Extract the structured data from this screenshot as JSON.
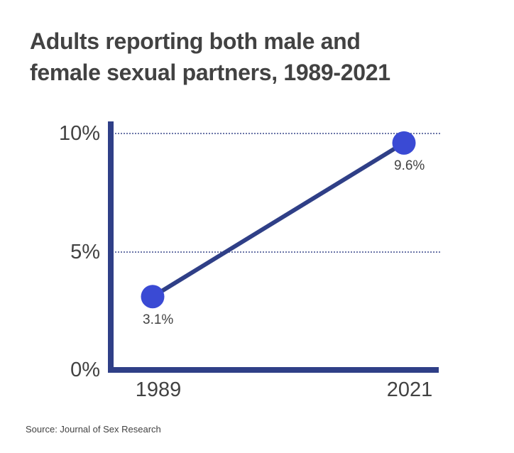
{
  "title": {
    "lines": [
      "Adults reporting both male and",
      "female sexual partners, 1989-2021"
    ]
  },
  "source": "Source: Journal of Sex Research",
  "chart_data": {
    "type": "line",
    "title": "Adults reporting both male and female sexual partners, 1989-2021",
    "categories": [
      "1989",
      "2021"
    ],
    "values": [
      3.1,
      9.6
    ],
    "point_labels": [
      "3.1%",
      "9.6%"
    ],
    "yticks": [
      {
        "value": 0,
        "label": "0%"
      },
      {
        "value": 5,
        "label": "5%"
      },
      {
        "value": 10,
        "label": "10%"
      }
    ],
    "ylim": [
      0,
      10
    ],
    "xlabel": "",
    "ylabel": "",
    "legend": "none",
    "grid": "horizontal dotted gridlines at labeled ticks above 0",
    "colors": {
      "axis": "#2f3f87",
      "line": "#2f3f87",
      "point": "#3a4ad4",
      "grid": "#6b76a8",
      "text": "#424242"
    },
    "source": "Source: Journal of Sex Research"
  }
}
